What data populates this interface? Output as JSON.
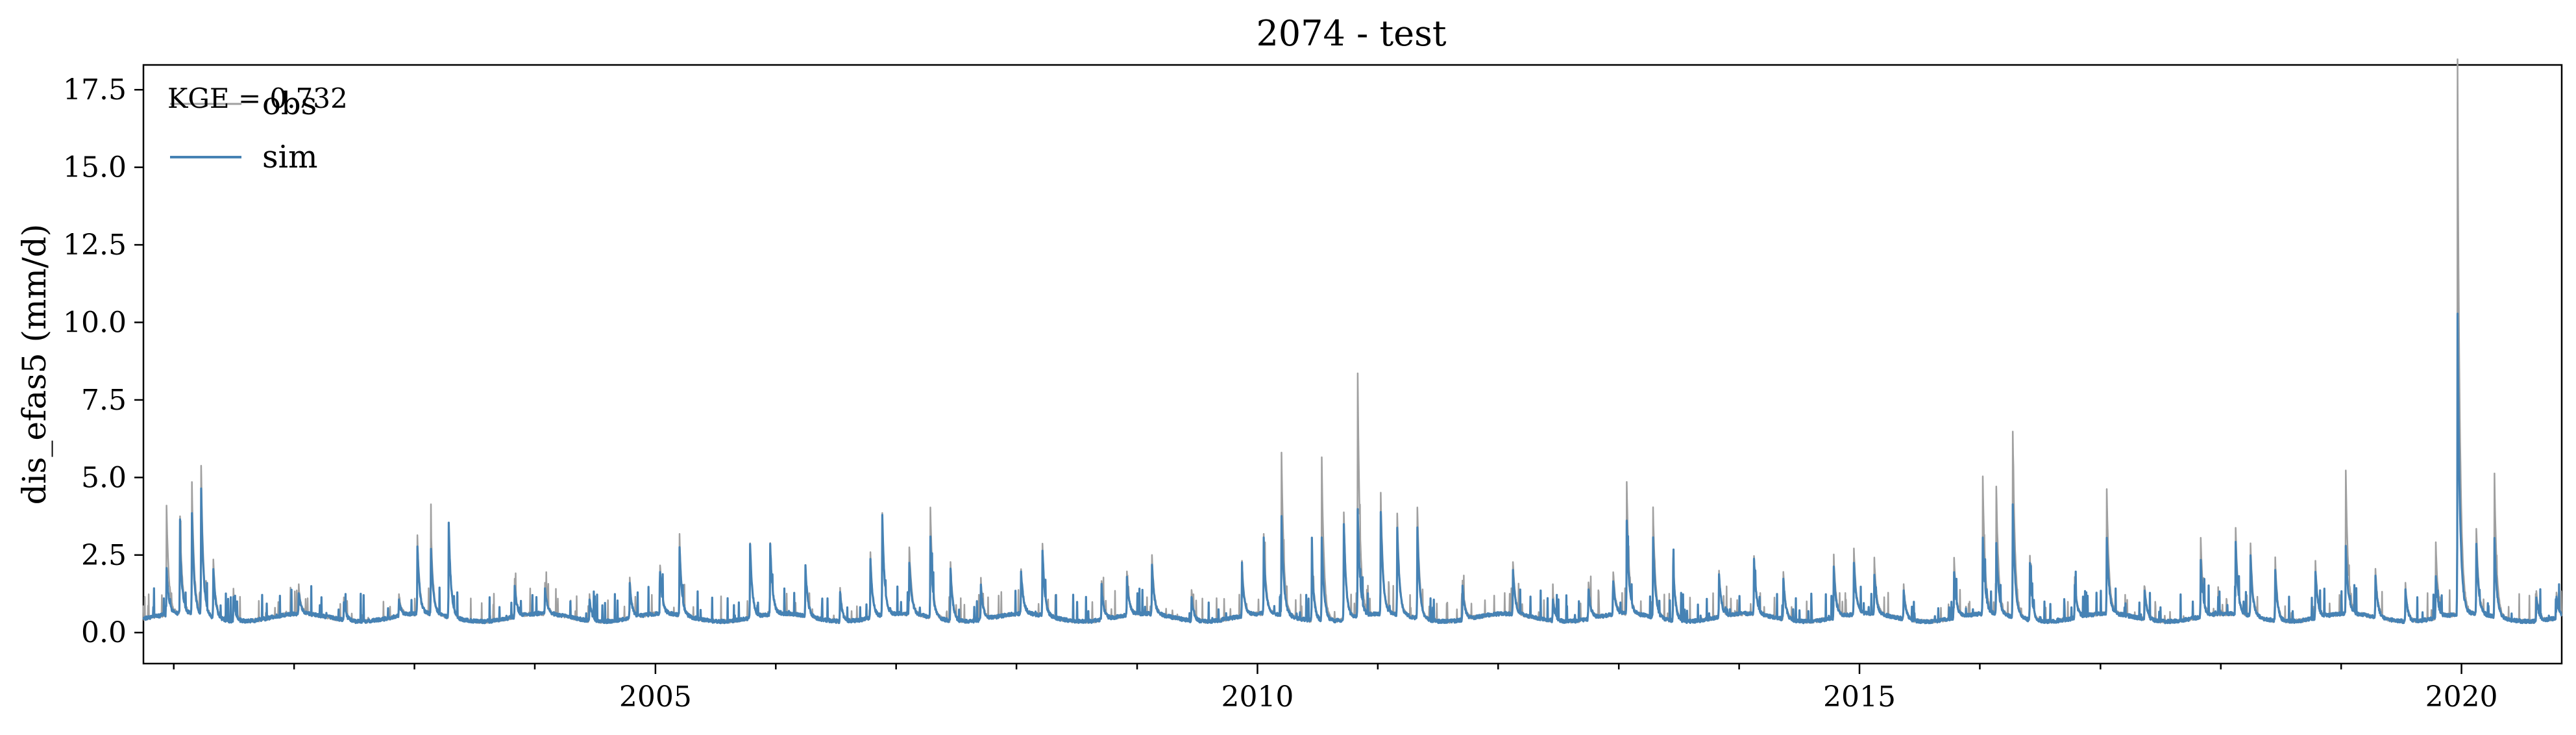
{
  "chart_data": {
    "type": "line",
    "title": "2074 - test",
    "xlabel": "",
    "ylabel": "dis_efas5 (mm/d)",
    "annotation": "KGE = 0.732",
    "xlim": [
      "2000-10-01",
      "2020-10-31"
    ],
    "ylim": [
      -1.0,
      18.3
    ],
    "x_ticks": [
      "2005",
      "2010",
      "2015",
      "2020"
    ],
    "y_ticks": [
      "0.0",
      "2.5",
      "5.0",
      "7.5",
      "10.0",
      "12.5",
      "15.0",
      "17.5"
    ],
    "legend": {
      "position": "top-left",
      "entries": [
        "obs",
        "sim"
      ]
    },
    "grid": false,
    "series": [
      {
        "name": "obs",
        "color": "#a0a0a0",
        "baseline": 0.3,
        "peaks": [
          [
            "2000-12-10",
            3.8
          ],
          [
            "2001-01-20",
            3.4
          ],
          [
            "2001-02-25",
            4.5
          ],
          [
            "2001-03-25",
            5.1
          ],
          [
            "2001-05-01",
            2.2
          ],
          [
            "2001-07-01",
            1.3
          ],
          [
            "2002-01-15",
            1.2
          ],
          [
            "2002-06-01",
            1.0
          ],
          [
            "2002-11-15",
            1.0
          ],
          [
            "2003-01-10",
            2.8
          ],
          [
            "2003-02-20",
            3.1
          ],
          [
            "2003-04-15",
            3.2
          ],
          [
            "2003-11-01",
            1.5
          ],
          [
            "2004-02-01",
            1.3
          ],
          [
            "2004-06-15",
            1.1
          ],
          [
            "2004-10-15",
            1.6
          ],
          [
            "2005-01-15",
            1.9
          ],
          [
            "2005-03-15",
            2.9
          ],
          [
            "2005-10-15",
            2.7
          ],
          [
            "2005-12-15",
            2.6
          ],
          [
            "2006-04-01",
            1.9
          ],
          [
            "2006-07-15",
            1.4
          ],
          [
            "2006-10-15",
            2.4
          ],
          [
            "2006-11-20",
            3.6
          ],
          [
            "2007-02-10",
            2.5
          ],
          [
            "2007-04-15",
            3.8
          ],
          [
            "2007-06-15",
            2.2
          ],
          [
            "2007-09-15",
            1.6
          ],
          [
            "2008-01-15",
            1.7
          ],
          [
            "2008-03-20",
            2.6
          ],
          [
            "2008-09-15",
            1.6
          ],
          [
            "2008-12-01",
            1.7
          ],
          [
            "2009-02-15",
            2.2
          ],
          [
            "2009-06-15",
            1.3
          ],
          [
            "2009-11-15",
            2.1
          ],
          [
            "2010-01-20",
            2.9
          ],
          [
            "2010-03-15",
            5.6
          ],
          [
            "2010-06-15",
            2.6
          ],
          [
            "2010-07-15",
            5.5
          ],
          [
            "2010-09-20",
            3.8
          ],
          [
            "2010-11-01",
            8.1
          ],
          [
            "2011-01-10",
            4.2
          ],
          [
            "2011-03-01",
            3.6
          ],
          [
            "2011-05-01",
            3.9
          ],
          [
            "2011-09-15",
            1.6
          ],
          [
            "2012-02-15",
            2.0
          ],
          [
            "2012-06-15",
            1.2
          ],
          [
            "2012-10-01",
            1.5
          ],
          [
            "2012-12-15",
            1.7
          ],
          [
            "2013-01-25",
            4.6
          ],
          [
            "2013-04-15",
            3.8
          ],
          [
            "2013-06-15",
            2.3
          ],
          [
            "2013-11-01",
            1.8
          ],
          [
            "2014-02-15",
            2.2
          ],
          [
            "2014-05-15",
            1.8
          ],
          [
            "2014-10-15",
            2.3
          ],
          [
            "2014-12-15",
            2.4
          ],
          [
            "2015-02-15",
            2.1
          ],
          [
            "2015-05-15",
            1.4
          ],
          [
            "2015-10-15",
            2.2
          ],
          [
            "2016-01-10",
            4.7
          ],
          [
            "2016-02-20",
            4.4
          ],
          [
            "2016-04-10",
            6.3
          ],
          [
            "2016-06-01",
            2.4
          ],
          [
            "2016-10-15",
            1.6
          ],
          [
            "2017-01-20",
            4.3
          ],
          [
            "2017-05-15",
            1.4
          ],
          [
            "2017-11-01",
            2.8
          ],
          [
            "2018-02-15",
            3.1
          ],
          [
            "2018-04-01",
            2.6
          ],
          [
            "2018-06-15",
            2.3
          ],
          [
            "2018-10-15",
            2.1
          ],
          [
            "2019-01-15",
            4.9
          ],
          [
            "2019-04-15",
            1.9
          ],
          [
            "2019-07-15",
            1.5
          ],
          [
            "2019-10-15",
            2.7
          ],
          [
            "2019-12-20",
            17.5
          ],
          [
            "2020-02-15",
            3.1
          ],
          [
            "2020-04-10",
            4.8
          ],
          [
            "2020-08-15",
            1.3
          ],
          [
            "2020-10-15",
            1.1
          ]
        ]
      },
      {
        "name": "sim",
        "color": "#4682b4",
        "baseline": 0.3,
        "peaks": [
          [
            "2000-12-10",
            1.8
          ],
          [
            "2001-01-20",
            2.6
          ],
          [
            "2001-02-25",
            3.6
          ],
          [
            "2001-03-25",
            4.3
          ],
          [
            "2001-05-01",
            1.9
          ],
          [
            "2001-07-01",
            1.1
          ],
          [
            "2002-01-15",
            1.0
          ],
          [
            "2002-06-01",
            0.9
          ],
          [
            "2002-11-15",
            0.8
          ],
          [
            "2003-01-10",
            2.5
          ],
          [
            "2003-02-20",
            2.4
          ],
          [
            "2003-04-15",
            3.3
          ],
          [
            "2003-11-01",
            1.3
          ],
          [
            "2004-02-01",
            1.1
          ],
          [
            "2004-06-15",
            1.0
          ],
          [
            "2004-10-15",
            1.4
          ],
          [
            "2005-01-15",
            1.7
          ],
          [
            "2005-03-15",
            2.5
          ],
          [
            "2005-10-15",
            2.7
          ],
          [
            "2005-12-15",
            2.6
          ],
          [
            "2006-04-01",
            1.9
          ],
          [
            "2006-07-15",
            1.2
          ],
          [
            "2006-10-15",
            2.2
          ],
          [
            "2006-11-20",
            3.5
          ],
          [
            "2007-02-10",
            2.0
          ],
          [
            "2007-04-15",
            2.9
          ],
          [
            "2007-06-15",
            2.0
          ],
          [
            "2007-09-15",
            1.4
          ],
          [
            "2008-01-15",
            1.7
          ],
          [
            "2008-03-20",
            2.4
          ],
          [
            "2008-09-15",
            1.4
          ],
          [
            "2008-12-01",
            1.5
          ],
          [
            "2009-02-15",
            1.9
          ],
          [
            "2009-06-15",
            1.1
          ],
          [
            "2009-11-15",
            1.8
          ],
          [
            "2010-01-20",
            2.4
          ],
          [
            "2010-03-15",
            3.5
          ],
          [
            "2010-06-15",
            2.2
          ],
          [
            "2010-07-15",
            3.0
          ],
          [
            "2010-09-20",
            3.4
          ],
          [
            "2010-11-01",
            3.8
          ],
          [
            "2011-01-10",
            3.6
          ],
          [
            "2011-03-01",
            3.1
          ],
          [
            "2011-05-01",
            3.2
          ],
          [
            "2011-09-15",
            1.4
          ],
          [
            "2012-02-15",
            1.7
          ],
          [
            "2012-06-15",
            1.0
          ],
          [
            "2012-10-01",
            1.3
          ],
          [
            "2012-12-15",
            1.4
          ],
          [
            "2013-01-25",
            3.3
          ],
          [
            "2013-04-15",
            2.9
          ],
          [
            "2013-06-15",
            2.0
          ],
          [
            "2013-11-01",
            1.7
          ],
          [
            "2014-02-15",
            2.1
          ],
          [
            "2014-05-15",
            1.6
          ],
          [
            "2014-10-15",
            1.9
          ],
          [
            "2014-12-15",
            2.0
          ],
          [
            "2015-02-15",
            1.6
          ],
          [
            "2015-05-15",
            1.2
          ],
          [
            "2015-10-15",
            1.8
          ],
          [
            "2016-01-10",
            2.8
          ],
          [
            "2016-02-20",
            2.6
          ],
          [
            "2016-04-10",
            3.9
          ],
          [
            "2016-06-01",
            2.1
          ],
          [
            "2016-10-15",
            1.4
          ],
          [
            "2017-01-20",
            2.8
          ],
          [
            "2017-05-15",
            1.2
          ],
          [
            "2017-11-01",
            2.1
          ],
          [
            "2018-02-15",
            2.6
          ],
          [
            "2018-04-01",
            2.2
          ],
          [
            "2018-06-15",
            1.9
          ],
          [
            "2018-10-15",
            1.8
          ],
          [
            "2019-01-15",
            2.5
          ],
          [
            "2019-04-15",
            1.6
          ],
          [
            "2019-07-15",
            1.3
          ],
          [
            "2019-10-15",
            1.7
          ],
          [
            "2019-12-20",
            10.0
          ],
          [
            "2020-02-15",
            2.5
          ],
          [
            "2020-04-10",
            2.8
          ],
          [
            "2020-08-15",
            1.1
          ],
          [
            "2020-10-15",
            1.0
          ]
        ]
      }
    ]
  }
}
